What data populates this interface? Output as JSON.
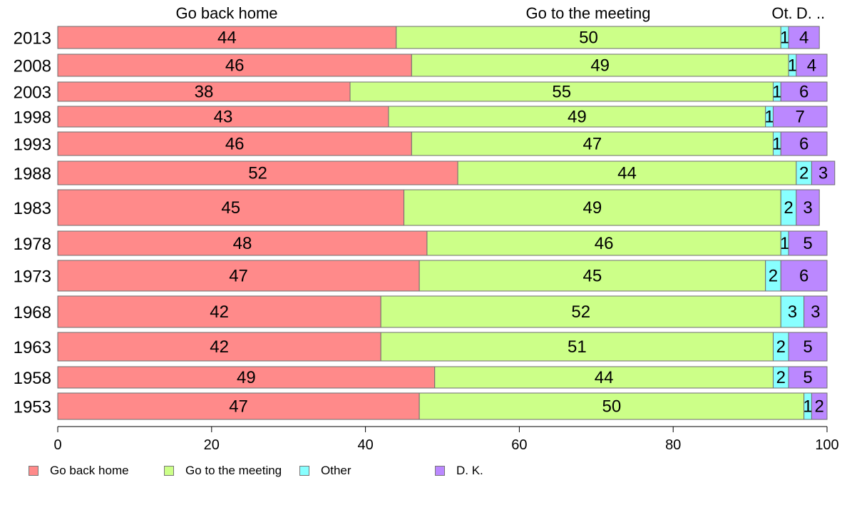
{
  "chart_data": {
    "type": "bar",
    "orientation": "horizontal",
    "stacked": true,
    "categories": [
      "2013",
      "2008",
      "2003",
      "1998",
      "1993",
      "1988",
      "1983",
      "1978",
      "1973",
      "1968",
      "1963",
      "1958",
      "1953"
    ],
    "series": [
      {
        "name": "Go back home",
        "color": "#ff8a8a",
        "values": [
          44,
          46,
          38,
          43,
          46,
          52,
          45,
          48,
          47,
          42,
          42,
          49,
          47
        ]
      },
      {
        "name": "Go to the meeting",
        "color": "#ccff88",
        "values": [
          50,
          49,
          55,
          49,
          47,
          44,
          49,
          46,
          45,
          52,
          51,
          44,
          50
        ]
      },
      {
        "name": "Other",
        "color": "#88ffff",
        "values": [
          1,
          1,
          1,
          1,
          1,
          2,
          2,
          1,
          2,
          3,
          2,
          2,
          1
        ]
      },
      {
        "name": "D. K.",
        "color": "#bb88ff",
        "values": [
          4,
          4,
          6,
          7,
          6,
          3,
          3,
          5,
          6,
          3,
          5,
          5,
          2
        ]
      }
    ],
    "top_labels": [
      "Go back home",
      "Go to the meeting",
      "Ot.",
      "D. .."
    ],
    "xlim": [
      0,
      100
    ],
    "xticks": [
      0,
      20,
      40,
      60,
      80,
      100
    ],
    "legend_position": "bottom"
  }
}
